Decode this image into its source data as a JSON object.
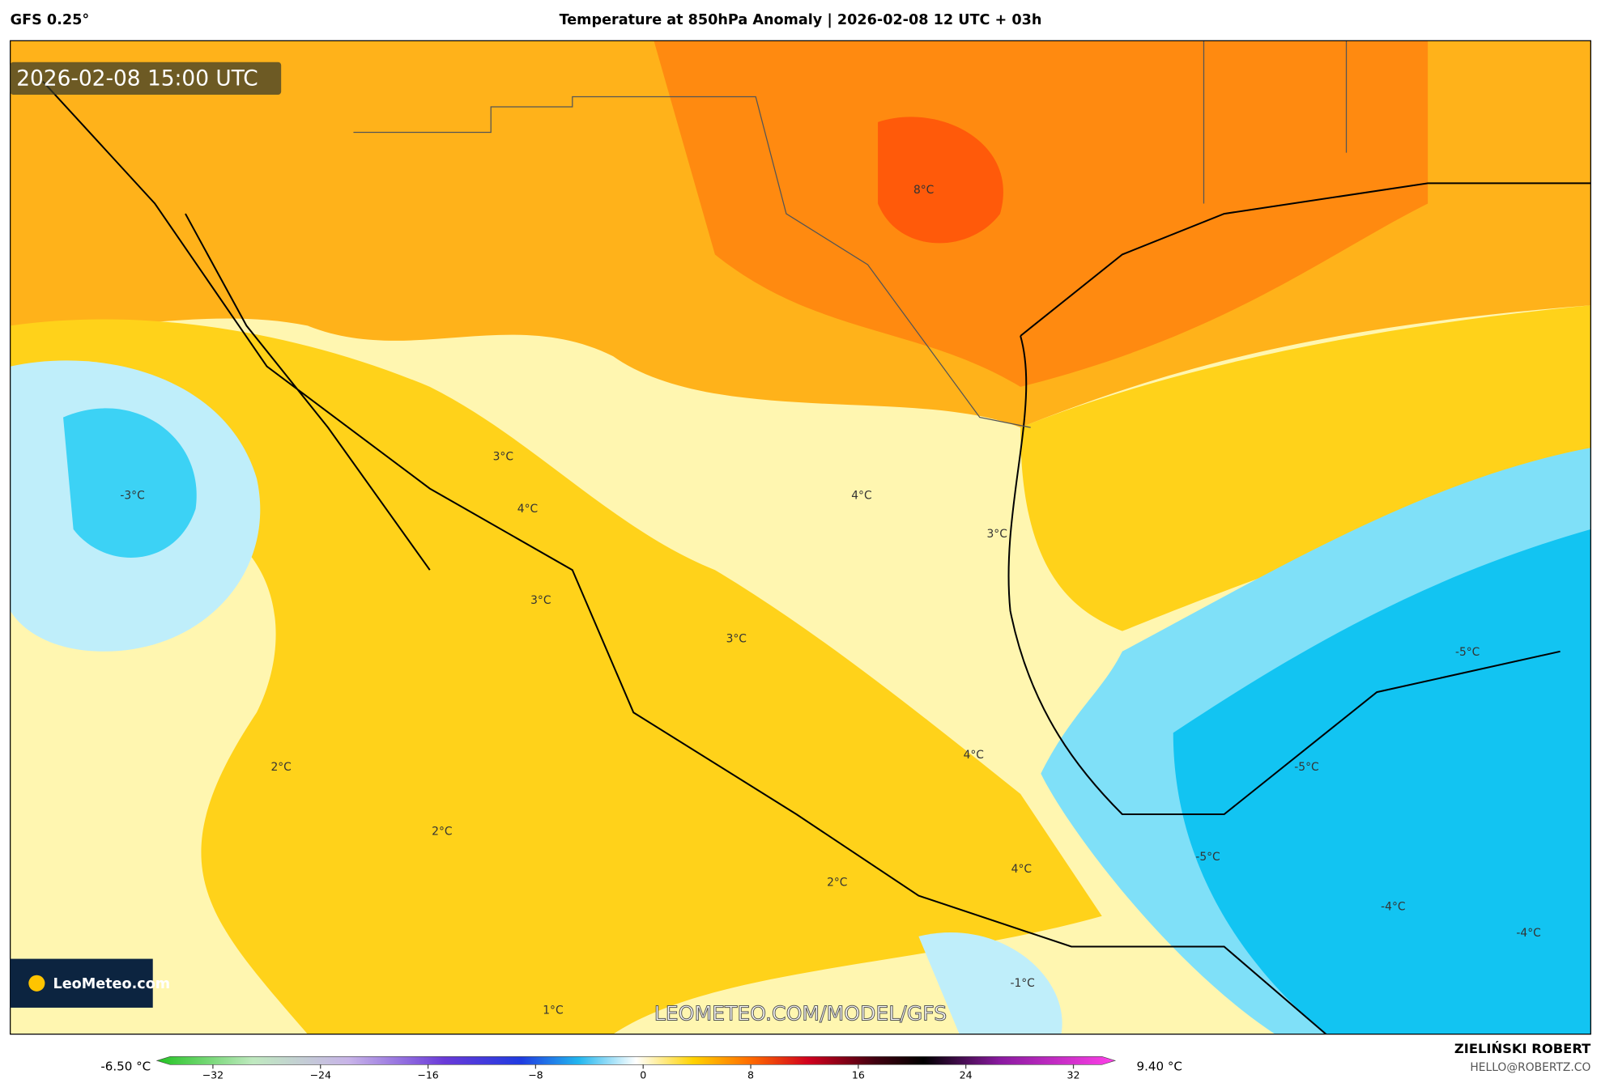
{
  "header": {
    "model": "GFS 0.25°",
    "title": "Temperature at 850hPa Anomaly | 2026-02-08 12 UTC + 03h"
  },
  "map": {
    "timestamp": "2026-02-08 15:00 UTC",
    "watermark": "LEOMETEO.COM/MODEL/GFS",
    "logo": "LeoMeteo.com",
    "labels": [
      "8°C",
      "3°C",
      "4°C",
      "-3°C",
      "4°C",
      "3°C",
      "3°C",
      "3°C",
      "-5°C",
      "4°C",
      "-5°C",
      "2°C",
      "2°C",
      "-5°C",
      "4°C",
      "2°C",
      "-4°C",
      "-4°C",
      "-1°C",
      "1°C"
    ]
  },
  "colorbar": {
    "min_label": "-6.50 °C",
    "max_label": "9.40 °C",
    "ticks": [
      {
        "value": -32,
        "label": "−32"
      },
      {
        "value": -24,
        "label": "−24"
      },
      {
        "value": -16,
        "label": "−16"
      },
      {
        "value": -8,
        "label": "−8"
      },
      0,
      8,
      16,
      24,
      32
    ]
  },
  "footer": {
    "author": "ZIELIŃSKI ROBERT",
    "email": "HELLO@ROBERTZ.CO"
  }
}
